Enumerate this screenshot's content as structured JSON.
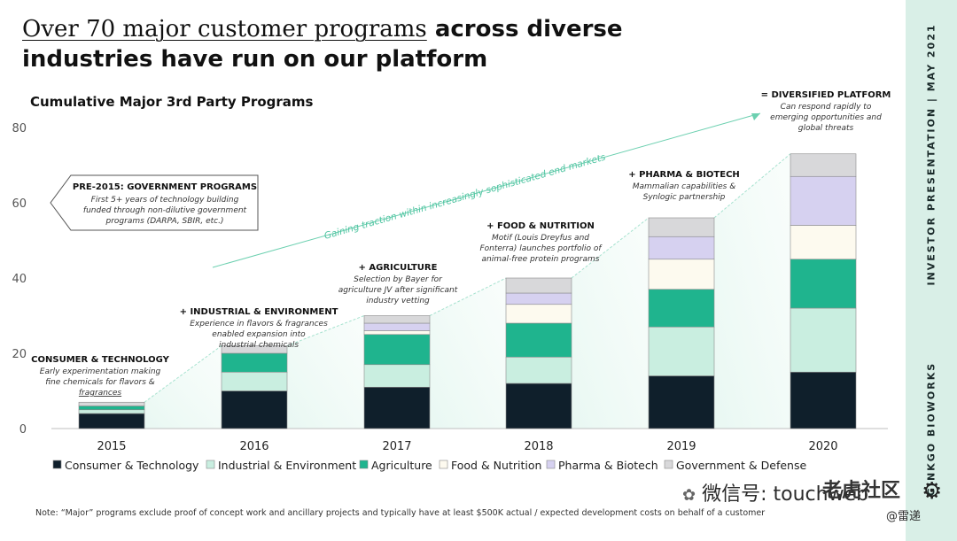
{
  "title": {
    "part1": "Over 70 major customer programs",
    "part2": " across diverse",
    "line2": "industries have run on our platform"
  },
  "subtitle": "Cumulative Major 3rd Party Programs",
  "sidebar": {
    "presentation": "INVESTOR PRESENTATION | MAY 2021",
    "brand": "GINKGO BIOWORKS"
  },
  "callouts": {
    "pre2015": {
      "title": "PRE-2015: GOVERNMENT PROGRAMS",
      "lines": [
        "First 5+ years of technology building",
        "funded through non-dilutive government",
        "programs (DARPA, SBIR, etc.)"
      ]
    },
    "consumer": {
      "title": "CONSUMER & TECHNOLOGY",
      "lines": [
        "Early experimentation making",
        "fine chemicals for flavors &",
        "fragrances"
      ]
    },
    "industrial": {
      "title": "+ INDUSTRIAL & ENVIRONMENT",
      "lines": [
        "Experience in flavors & fragrances",
        "enabled expansion into",
        "industrial chemicals"
      ]
    },
    "agriculture": {
      "title": "+ AGRICULTURE",
      "lines": [
        "Selection by Bayer for",
        "agriculture JV after significant",
        "industry vetting"
      ]
    },
    "food": {
      "title": "+ FOOD & NUTRITION",
      "lines": [
        "Motif (Louis Dreyfus and",
        "Fonterra) launches portfolio of",
        "animal-free protein programs"
      ]
    },
    "pharma": {
      "title": "+ PHARMA & BIOTECH",
      "lines": [
        "Mammalian capabilities &",
        "Synlogic partnership"
      ]
    },
    "diversified": {
      "title": "= DIVERSIFIED PLATFORM",
      "lines": [
        "Can respond rapidly to",
        "emerging opportunities and",
        "global threats"
      ]
    },
    "arrow_label": "Gaining traction within increasingly sophisticated end markets"
  },
  "note": "Note: “Major” programs exclude proof of concept work and ancillary projects and typically have at least $500K actual / expected development costs on behalf of a customer",
  "watermark": {
    "left": "微信号: touchweb",
    "right": "老虎社区",
    "sub": "@雷递"
  },
  "chart_data": {
    "type": "bar",
    "stacked": true,
    "title": "Cumulative Major 3rd Party Programs",
    "categories": [
      "2015",
      "2016",
      "2017",
      "2018",
      "2019",
      "2020"
    ],
    "ylim": [
      0,
      80
    ],
    "yticks": [
      0,
      20,
      40,
      60,
      80
    ],
    "series": [
      {
        "name": "Consumer & Technology",
        "color": "#0f1f2b",
        "values": [
          4,
          10,
          11,
          12,
          14,
          15
        ]
      },
      {
        "name": "Industrial & Environment",
        "color": "#c9eee0",
        "values": [
          1,
          5,
          6,
          7,
          13,
          17
        ]
      },
      {
        "name": "Agriculture",
        "color": "#1fb48e",
        "values": [
          1,
          5,
          8,
          9,
          10,
          13
        ]
      },
      {
        "name": "Food & Nutrition",
        "color": "#fdfaef",
        "values": [
          0,
          0,
          1,
          5,
          8,
          9
        ]
      },
      {
        "name": "Pharma & Biotech",
        "color": "#d6d1f0",
        "values": [
          0,
          0,
          2,
          3,
          6,
          13
        ]
      },
      {
        "name": "Government & Defense",
        "color": "#d8d8da",
        "values": [
          1,
          2,
          2,
          4,
          5,
          6
        ]
      }
    ]
  }
}
